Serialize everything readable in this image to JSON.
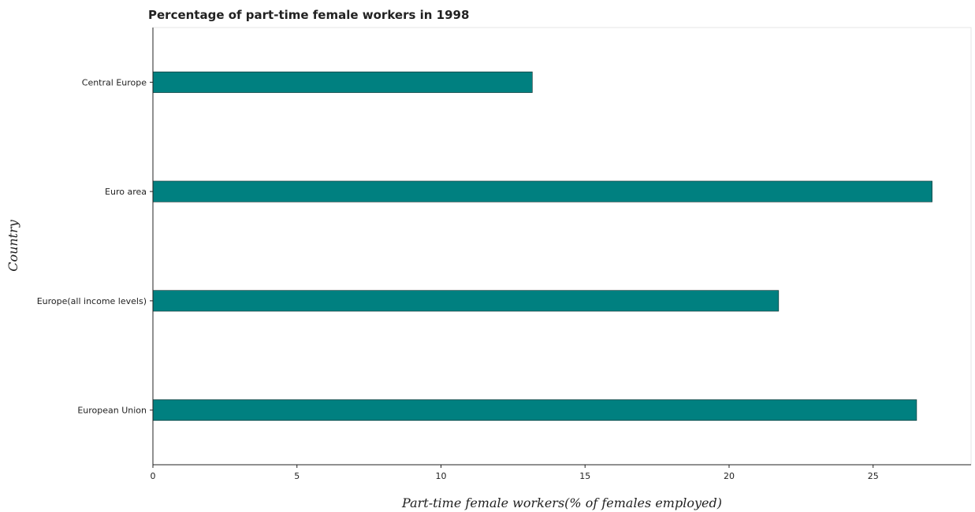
{
  "chart_data": {
    "type": "bar",
    "orientation": "horizontal",
    "title": "Percentage of part-time female workers in 1998",
    "xlabel": "Part-time female workers(% of females employed)",
    "ylabel": "Country",
    "categories": [
      "Central Europe",
      "Euro area",
      "Europe(all income levels)",
      "European Union"
    ],
    "values": [
      13.17,
      27.05,
      21.72,
      26.51
    ],
    "xlim": [
      0,
      28.4
    ],
    "xticks": [
      0,
      5,
      10,
      15,
      20,
      25
    ],
    "xtick_labels": [
      "0",
      "5",
      "10",
      "15",
      "20",
      "25"
    ],
    "grid": false,
    "bar_color": "#008080"
  }
}
